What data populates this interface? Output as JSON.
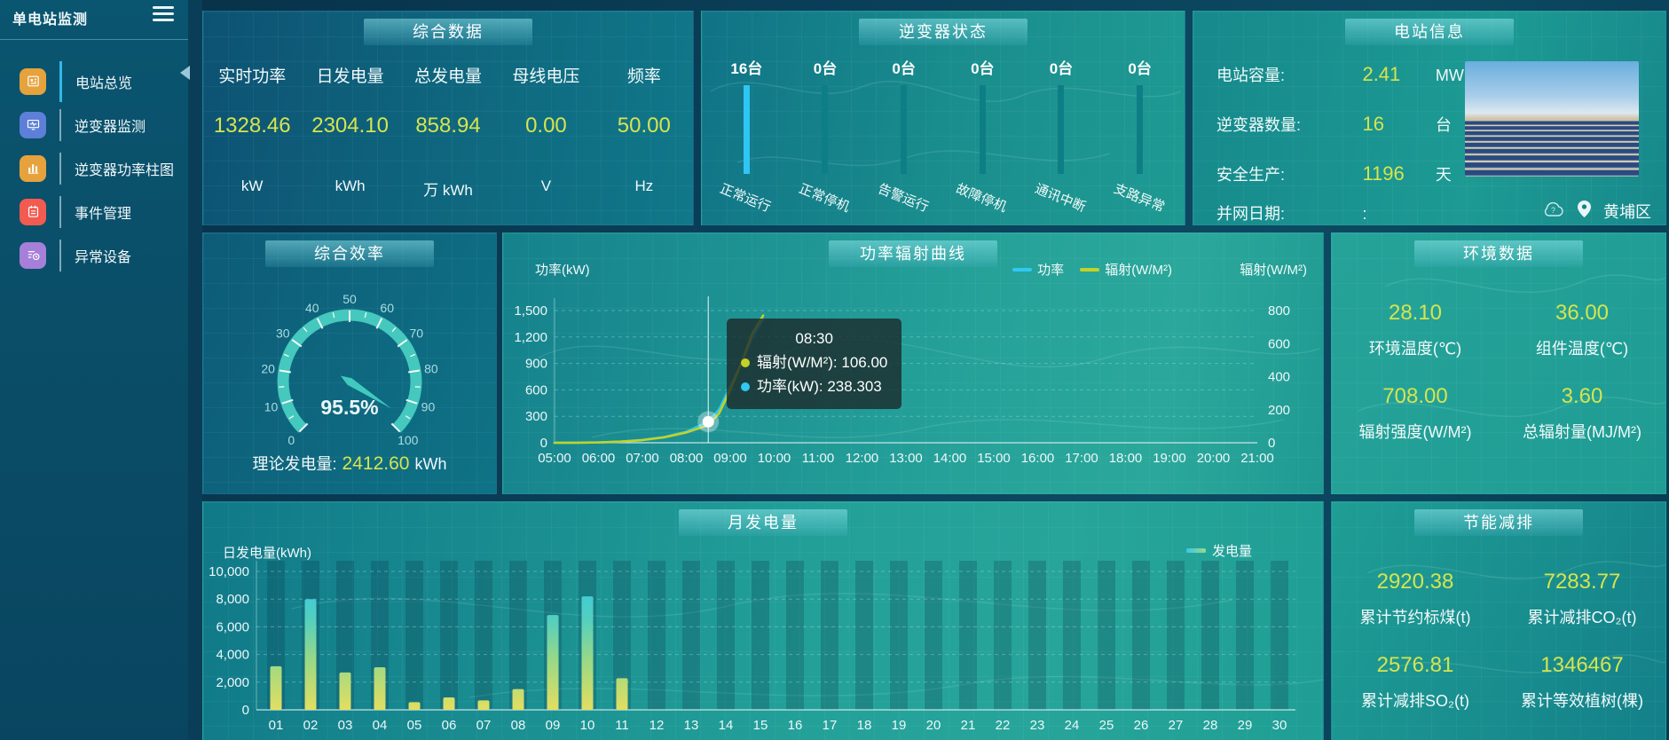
{
  "sidebar": {
    "title": "单电站监测",
    "items": [
      {
        "label": "电站总览",
        "icon": "station-overview-icon",
        "icon_color": "#e6a23c",
        "active": true
      },
      {
        "label": "逆变器监测",
        "icon": "inverter-monitor-icon",
        "icon_color": "#5d7fd8",
        "active": false
      },
      {
        "label": "逆变器功率柱图",
        "icon": "inverter-power-bars-icon",
        "icon_color": "#e6a23c",
        "active": false
      },
      {
        "label": "事件管理",
        "icon": "event-management-icon",
        "icon_color": "#f15b50",
        "active": false
      },
      {
        "label": "异常设备",
        "icon": "abnormal-device-icon",
        "icon_color": "#a57fd8",
        "active": false
      }
    ]
  },
  "overview": {
    "title": "综合数据",
    "metrics": [
      {
        "label": "实时功率",
        "value": "1328.46",
        "unit": "kW"
      },
      {
        "label": "日发电量",
        "value": "2304.10",
        "unit": "kWh"
      },
      {
        "label": "总发电量",
        "value": "858.94",
        "unit": "万 kWh"
      },
      {
        "label": "母线电压",
        "value": "0.00",
        "unit": "V"
      },
      {
        "label": "频率",
        "value": "50.00",
        "unit": "Hz"
      }
    ]
  },
  "inverter_status": {
    "title": "逆变器状态",
    "items": [
      {
        "count": "16台",
        "label": "正常运行",
        "highlight": true
      },
      {
        "count": "0台",
        "label": "正常停机",
        "highlight": false
      },
      {
        "count": "0台",
        "label": "告警运行",
        "highlight": false
      },
      {
        "count": "0台",
        "label": "故障停机",
        "highlight": false
      },
      {
        "count": "0台",
        "label": "通讯中断",
        "highlight": false
      },
      {
        "count": "0台",
        "label": "支路异常",
        "highlight": false
      }
    ]
  },
  "station_info": {
    "title": "电站信息",
    "rows": [
      {
        "label": "电站容量:",
        "value": "2.41",
        "unit": "MW"
      },
      {
        "label": "逆变器数量:",
        "value": "16",
        "unit": "台"
      },
      {
        "label": "安全生产:",
        "value": "1196",
        "unit": "天"
      },
      {
        "label": "并网日期:",
        "value": ":",
        "unit": ""
      }
    ],
    "location": "黄埔区"
  },
  "efficiency": {
    "title": "综合效率",
    "footer_label": "理论发电量:",
    "footer_value": "2412.60",
    "footer_unit": "kWh"
  },
  "environment": {
    "title": "环境数据",
    "items": [
      {
        "value": "28.10",
        "label": "环境温度(℃)"
      },
      {
        "value": "36.00",
        "label": "组件温度(℃)"
      },
      {
        "value": "708.00",
        "label": "辐射强度(W/M²)"
      },
      {
        "value": "3.60",
        "label": "总辐射量(MJ/M²)"
      }
    ]
  },
  "savings": {
    "title": "节能减排",
    "items": [
      {
        "value": "2920.38",
        "label": "累计节约标煤(t)"
      },
      {
        "value": "7283.77",
        "label": "累计减排CO₂(t)"
      },
      {
        "value": "2576.81",
        "label": "累计减排SO₂(t)"
      },
      {
        "value": "1346467",
        "label": "累计等效植树(棵)"
      }
    ]
  },
  "colors": {
    "accent_value": "#d6e44e",
    "power_line": "#2fc9f2",
    "radiation_line": "#c3d226",
    "inverter_bar_active": "#2ec6f4",
    "inverter_bar_idle": "#0e7e86",
    "gauge_arc": "#45c8bd"
  },
  "chart_data": [
    {
      "id": "power_radiation_curve",
      "type": "line",
      "title": "功率辐射曲线",
      "x_ticks": [
        "05:00",
        "06:00",
        "07:00",
        "08:00",
        "09:00",
        "10:00",
        "11:00",
        "12:00",
        "13:00",
        "14:00",
        "15:00",
        "16:00",
        "17:00",
        "18:00",
        "19:00",
        "20:00",
        "21:00"
      ],
      "left_axis": {
        "name": "功率(kW)",
        "min": 0,
        "max": 1500,
        "ticks": [
          0,
          300,
          600,
          900,
          1200,
          1500
        ]
      },
      "right_axis": {
        "name": "辐射(W/M²)",
        "min": 0,
        "max": 800,
        "ticks": [
          0,
          200,
          400,
          600,
          800
        ]
      },
      "legend": [
        {
          "name": "功率",
          "color": "#2fc9f2"
        },
        {
          "name": "辐射(W/M²)",
          "color": "#c3d226"
        }
      ],
      "series": [
        {
          "name": "功率",
          "axis": "left",
          "color": "#2fc9f2",
          "points": [
            [
              "05:00",
              0
            ],
            [
              "05:30",
              1
            ],
            [
              "06:00",
              4
            ],
            [
              "06:30",
              12
            ],
            [
              "07:00",
              32
            ],
            [
              "07:30",
              65
            ],
            [
              "08:00",
              125
            ],
            [
              "08:30",
              238.303
            ],
            [
              "08:45",
              380
            ],
            [
              "09:00",
              640
            ],
            [
              "09:15",
              900
            ],
            [
              "09:30",
              1200
            ],
            [
              "09:45",
              1400
            ]
          ]
        },
        {
          "name": "辐射(W/M²)",
          "axis": "right",
          "color": "#c3d226",
          "points": [
            [
              "05:00",
              0
            ],
            [
              "05:30",
              0
            ],
            [
              "06:00",
              2
            ],
            [
              "06:30",
              7
            ],
            [
              "07:00",
              16
            ],
            [
              "07:30",
              33
            ],
            [
              "08:00",
              62
            ],
            [
              "08:30",
              106
            ],
            [
              "08:45",
              180
            ],
            [
              "09:00",
              320
            ],
            [
              "09:15",
              480
            ],
            [
              "09:30",
              660
            ],
            [
              "09:45",
              770
            ]
          ]
        }
      ],
      "highlight": {
        "time": "08:30",
        "tooltip_title": "08:30",
        "rows": [
          {
            "series": "辐射(W/M²)",
            "color": "#c3d226",
            "text": "辐射(W/M²): 106.00"
          },
          {
            "series": "功率",
            "color": "#2fc9f2",
            "text": "功率(kW): 238.303"
          }
        ]
      }
    },
    {
      "id": "monthly_generation",
      "type": "bar",
      "title": "月发电量",
      "ylabel": "日发电量(kWh)",
      "legend": [
        {
          "name": "发电量",
          "color": "#6fd8a8"
        }
      ],
      "categories": [
        "01",
        "02",
        "03",
        "04",
        "05",
        "06",
        "07",
        "08",
        "09",
        "10",
        "11",
        "12",
        "13",
        "14",
        "15",
        "16",
        "17",
        "18",
        "19",
        "20",
        "21",
        "22",
        "23",
        "24",
        "25",
        "26",
        "27",
        "28",
        "29",
        "30"
      ],
      "values": [
        3150,
        8000,
        2700,
        3080,
        550,
        900,
        680,
        1500,
        6850,
        8200,
        2280,
        0,
        0,
        0,
        0,
        0,
        0,
        0,
        0,
        0,
        0,
        0,
        0,
        0,
        0,
        0,
        0,
        0,
        0,
        0
      ],
      "ylim": [
        0,
        10000
      ],
      "yticks": [
        0,
        2000,
        4000,
        6000,
        8000,
        10000
      ]
    },
    {
      "id": "overall_efficiency",
      "type": "gauge",
      "title": "综合效率",
      "value": 95.5,
      "min": 0,
      "max": 100,
      "display": "95.5%"
    }
  ]
}
